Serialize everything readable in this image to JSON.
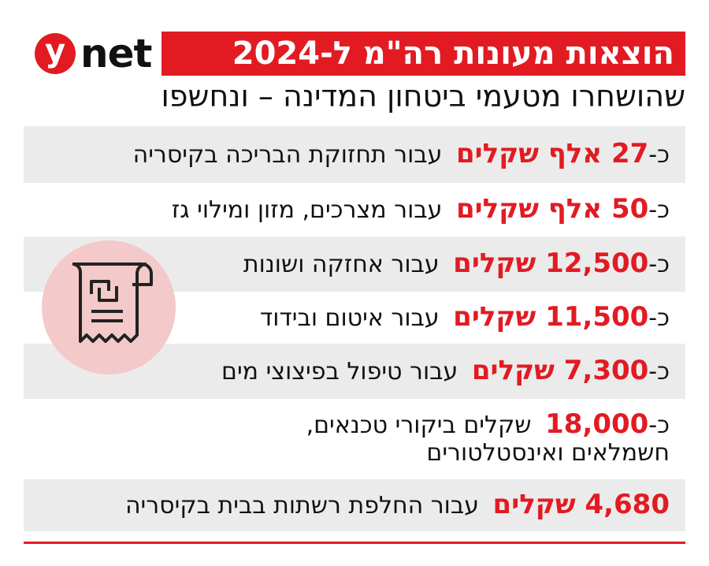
{
  "header": {
    "title": "הוצאות מעונות רה\"מ ל-2024",
    "logo_y": "y",
    "logo_net": "net",
    "subtitle": "שהושחרו מטעמי ביטחון המדינה – ונחשפו"
  },
  "items": [
    {
      "prefix": "כ-",
      "amount": "27 אלף שקלים",
      "text": "עבור תחזוקת הבריכה בקיסריה"
    },
    {
      "prefix": "כ-",
      "amount": "50 אלף שקלים",
      "text": "עבור מצרכים, מזון ומילוי גז"
    },
    {
      "prefix": "כ-",
      "amount": "12,500 שקלים",
      "text": "עבור אחזקה ושונות"
    },
    {
      "prefix": "כ-",
      "amount": "11,500 שקלים",
      "text": "עבור איטום ובידוד"
    },
    {
      "prefix": "כ-",
      "amount": "7,300 שקלים",
      "text": "עבור טיפול בפיצוצי מים"
    },
    {
      "prefix": "כ-",
      "amount": "18,000",
      "text": "שקלים ביקורי טכנאים, חשמלאים ואינסטלטורים"
    },
    {
      "amount": "4,680 שקלים",
      "text": "עבור החלפת רשתות בבית בקיסריה"
    }
  ]
}
